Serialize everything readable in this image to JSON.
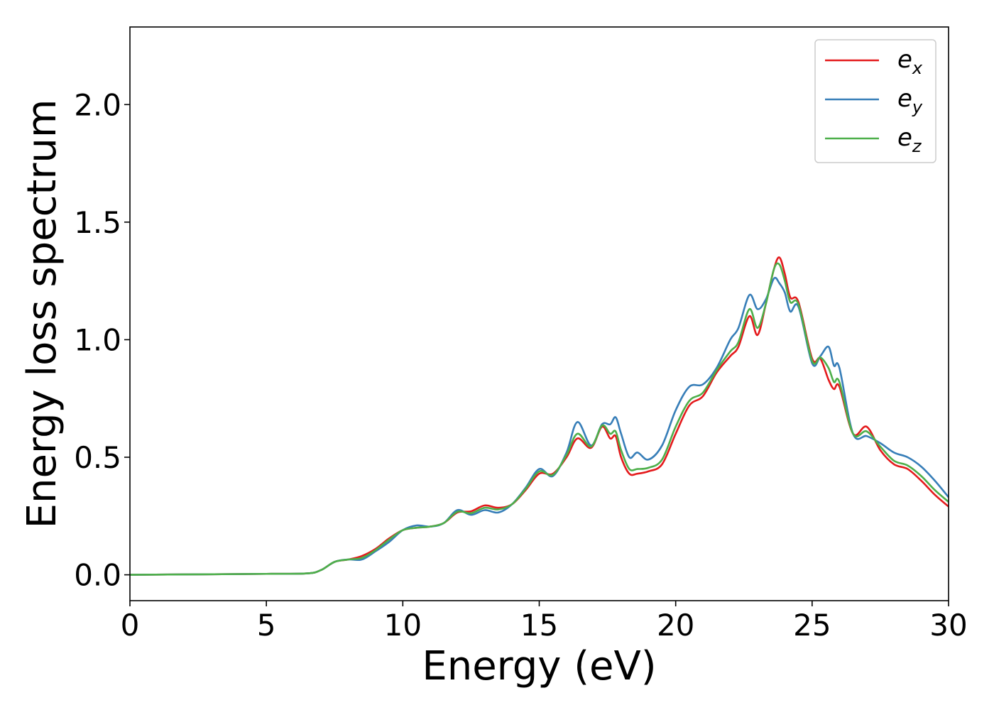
{
  "chart_data": {
    "type": "line",
    "xlabel": "Energy (eV)",
    "ylabel": "Energy loss spectrum",
    "xlim": [
      0,
      30
    ],
    "ylim": [
      -0.11,
      2.33
    ],
    "xticks": [
      0,
      5,
      10,
      15,
      20,
      25,
      30
    ],
    "xtick_labels": [
      "0",
      "5",
      "10",
      "15",
      "20",
      "25",
      "30"
    ],
    "yticks": [
      0.0,
      0.5,
      1.0,
      1.5,
      2.0
    ],
    "ytick_labels": [
      "0.0",
      "0.5",
      "1.0",
      "1.5",
      "2.0"
    ],
    "grid": false,
    "legend_position": "top-right",
    "series": [
      {
        "name": "e",
        "subscript": "x",
        "color": "#e41a1c",
        "x": [
          0,
          5,
          6.5,
          7.0,
          7.5,
          8.0,
          8.5,
          9.0,
          9.5,
          10.0,
          10.5,
          11.0,
          11.5,
          12.0,
          12.5,
          13.0,
          13.5,
          14.0,
          14.5,
          15.0,
          15.5,
          16.0,
          16.4,
          16.9,
          17.3,
          17.6,
          17.8,
          18.0,
          18.3,
          18.6,
          19.0,
          19.5,
          20.0,
          20.5,
          21.0,
          21.5,
          22.0,
          22.3,
          22.7,
          23.0,
          23.3,
          23.6,
          23.8,
          24.0,
          24.2,
          24.5,
          25.0,
          25.3,
          25.6,
          25.8,
          26.0,
          26.5,
          27.0,
          27.5,
          28.0,
          28.5,
          29.0,
          29.5,
          30.0
        ],
        "values": [
          0.0,
          0.004,
          0.006,
          0.02,
          0.055,
          0.065,
          0.08,
          0.11,
          0.155,
          0.19,
          0.2,
          0.205,
          0.22,
          0.265,
          0.27,
          0.295,
          0.285,
          0.3,
          0.36,
          0.43,
          0.43,
          0.5,
          0.58,
          0.54,
          0.63,
          0.58,
          0.59,
          0.5,
          0.43,
          0.43,
          0.44,
          0.47,
          0.6,
          0.72,
          0.76,
          0.86,
          0.93,
          0.97,
          1.1,
          1.02,
          1.15,
          1.3,
          1.35,
          1.28,
          1.18,
          1.16,
          0.92,
          0.92,
          0.83,
          0.79,
          0.8,
          0.6,
          0.63,
          0.53,
          0.47,
          0.45,
          0.4,
          0.34,
          0.29
        ]
      },
      {
        "name": "e",
        "subscript": "y",
        "color": "#377eb8",
        "x": [
          0,
          5,
          6.5,
          7.0,
          7.5,
          8.0,
          8.5,
          9.0,
          9.5,
          10.0,
          10.5,
          11.0,
          11.5,
          12.0,
          12.5,
          13.0,
          13.5,
          14.0,
          14.5,
          15.0,
          15.5,
          16.0,
          16.4,
          16.9,
          17.3,
          17.6,
          17.8,
          18.0,
          18.3,
          18.6,
          19.0,
          19.5,
          20.0,
          20.5,
          21.0,
          21.5,
          22.0,
          22.3,
          22.7,
          23.0,
          23.3,
          23.6,
          23.8,
          24.0,
          24.2,
          24.5,
          25.0,
          25.3,
          25.6,
          25.8,
          26.0,
          26.5,
          27.0,
          27.5,
          28.0,
          28.5,
          29.0,
          29.5,
          30.0
        ],
        "values": [
          0.0,
          0.004,
          0.006,
          0.02,
          0.055,
          0.065,
          0.065,
          0.1,
          0.14,
          0.19,
          0.21,
          0.205,
          0.22,
          0.275,
          0.255,
          0.275,
          0.265,
          0.3,
          0.37,
          0.45,
          0.42,
          0.52,
          0.65,
          0.55,
          0.64,
          0.64,
          0.67,
          0.6,
          0.5,
          0.52,
          0.49,
          0.55,
          0.7,
          0.8,
          0.81,
          0.88,
          1.0,
          1.05,
          1.19,
          1.13,
          1.17,
          1.26,
          1.24,
          1.2,
          1.12,
          1.14,
          0.9,
          0.93,
          0.97,
          0.89,
          0.88,
          0.6,
          0.59,
          0.56,
          0.52,
          0.5,
          0.46,
          0.4,
          0.33
        ]
      },
      {
        "name": "e",
        "subscript": "z",
        "color": "#4daf4a",
        "x": [
          0,
          5,
          6.5,
          7.0,
          7.5,
          8.0,
          8.5,
          9.0,
          9.5,
          10.0,
          10.5,
          11.0,
          11.5,
          12.0,
          12.5,
          13.0,
          13.5,
          14.0,
          14.5,
          15.0,
          15.5,
          16.0,
          16.4,
          16.9,
          17.3,
          17.6,
          17.8,
          18.0,
          18.3,
          18.6,
          19.0,
          19.5,
          20.0,
          20.5,
          21.0,
          21.5,
          22.0,
          22.3,
          22.7,
          23.0,
          23.3,
          23.6,
          23.8,
          24.0,
          24.2,
          24.5,
          25.0,
          25.3,
          25.6,
          25.8,
          26.0,
          26.5,
          27.0,
          27.5,
          28.0,
          28.5,
          29.0,
          29.5,
          30.0
        ],
        "values": [
          0.0,
          0.004,
          0.006,
          0.02,
          0.055,
          0.065,
          0.072,
          0.105,
          0.15,
          0.19,
          0.2,
          0.205,
          0.22,
          0.268,
          0.262,
          0.285,
          0.278,
          0.3,
          0.365,
          0.44,
          0.425,
          0.51,
          0.6,
          0.545,
          0.635,
          0.6,
          0.61,
          0.53,
          0.45,
          0.45,
          0.455,
          0.49,
          0.63,
          0.74,
          0.775,
          0.87,
          0.95,
          0.99,
          1.13,
          1.05,
          1.15,
          1.3,
          1.32,
          1.25,
          1.16,
          1.15,
          0.91,
          0.925,
          0.88,
          0.82,
          0.82,
          0.6,
          0.61,
          0.545,
          0.485,
          0.465,
          0.42,
          0.36,
          0.31
        ]
      }
    ]
  }
}
